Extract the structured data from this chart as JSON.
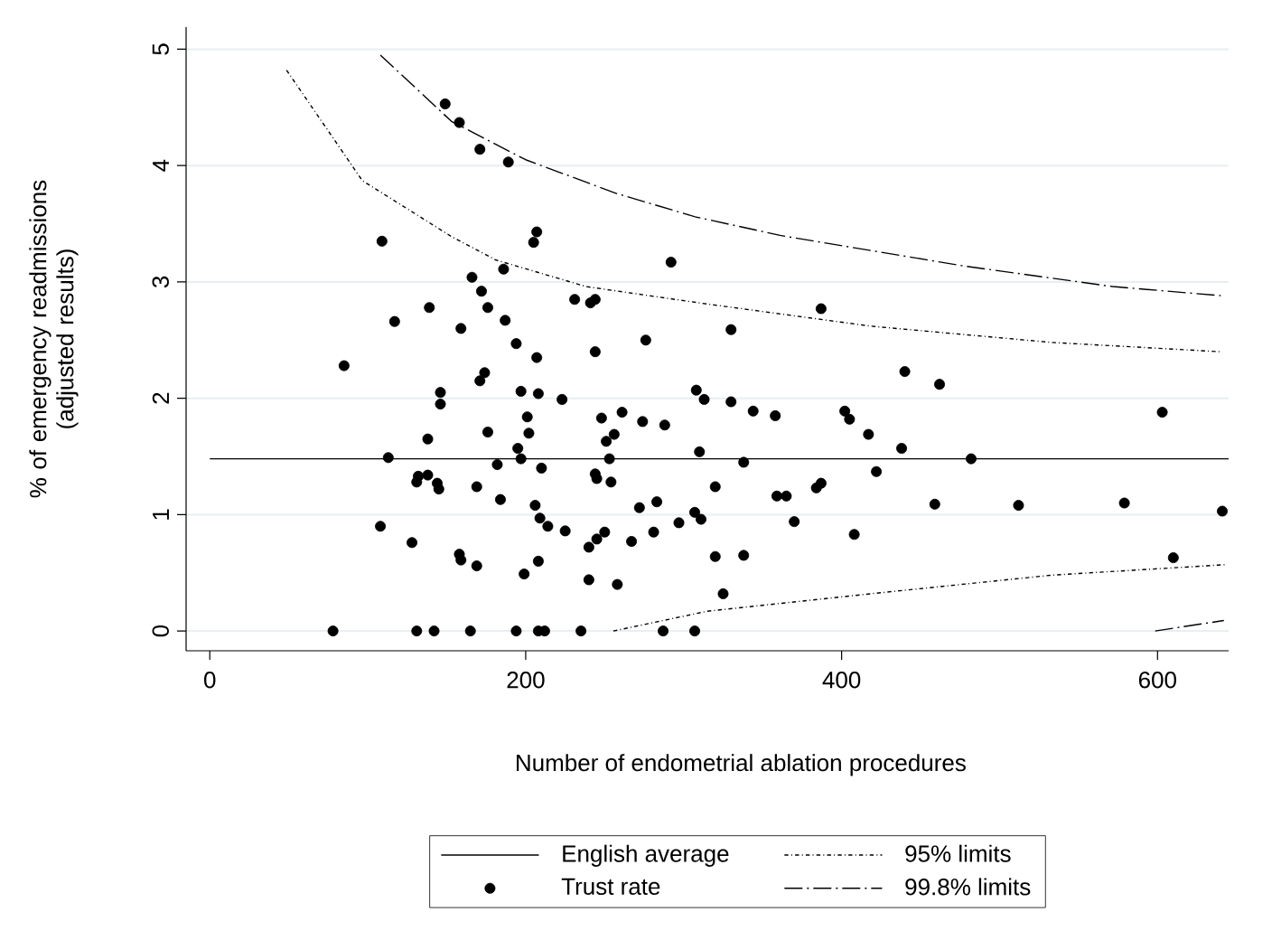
{
  "chart_data": {
    "type": "scatter",
    "xlabel": "Number of endometrial ablation procedures",
    "ylabel": "% of emergency readmissions (adjusted results)",
    "xlim": [
      -15,
      645
    ],
    "ylim": [
      -0.17,
      5.19
    ],
    "xticks": [
      0,
      200,
      400,
      600
    ],
    "yticks": [
      0,
      1,
      2,
      3,
      4,
      5
    ],
    "grid": "y",
    "legend": "bottom",
    "series": [
      {
        "name": "English average",
        "type": "line",
        "color": "#000000",
        "line_style": "solid",
        "x": [
          0,
          645
        ],
        "values": [
          1.48,
          1.48
        ]
      },
      {
        "name": "95% limits",
        "type": "line",
        "color": "#000000",
        "line_style": "dotted",
        "x": [
          48.6,
          96.6,
          153,
          180.8,
          238.3,
          315,
          418.4,
          533,
          640
        ],
        "values": [
          4.82,
          3.87,
          3.39,
          3.19,
          2.96,
          2.81,
          2.62,
          2.48,
          2.4
        ]
      },
      {
        "type": "line",
        "color": "#000000",
        "line_style": "dotted",
        "x": [
          255.5,
          315,
          418.4,
          533,
          643
        ],
        "values": [
          0,
          0.17,
          0.32,
          0.48,
          0.57
        ]
      },
      {
        "name": "Trust rate",
        "color": "#000000",
        "marker": "circle",
        "x": [
          149,
          109,
          139,
          117,
          85,
          146,
          146,
          138,
          113,
          132,
          138,
          131,
          144,
          145,
          108,
          128,
          78,
          131,
          142,
          158,
          171,
          189,
          207,
          205,
          292,
          186,
          166,
          172,
          231,
          241,
          244,
          176,
          187,
          159,
          276,
          194,
          244,
          207,
          174,
          171,
          197,
          208,
          223,
          308,
          313,
          201,
          248,
          261,
          274,
          288,
          176,
          202,
          256,
          251,
          195,
          197,
          253,
          310,
          182,
          210,
          244,
          245,
          254,
          169,
          184,
          206,
          272,
          283,
          209,
          214,
          225,
          250,
          245,
          240,
          267,
          281,
          297,
          307,
          311,
          158,
          159,
          169,
          208,
          199,
          240,
          258,
          165,
          194,
          208,
          212,
          235,
          287,
          307,
          387,
          330,
          440,
          462,
          330,
          344,
          358,
          402,
          405,
          417,
          438,
          603,
          338,
          482,
          320,
          422,
          359,
          365,
          384,
          387,
          370,
          459,
          512,
          579,
          641,
          408,
          320,
          338,
          325,
          610
        ],
        "values": [
          4.53,
          3.35,
          2.78,
          2.66,
          2.28,
          2.05,
          1.95,
          1.65,
          1.49,
          1.33,
          1.34,
          1.28,
          1.27,
          1.22,
          0.9,
          0.76,
          0,
          0,
          0,
          4.37,
          4.14,
          4.03,
          3.43,
          3.34,
          3.17,
          3.11,
          3.04,
          2.92,
          2.85,
          2.82,
          2.85,
          2.78,
          2.67,
          2.6,
          2.5,
          2.47,
          2.4,
          2.35,
          2.22,
          2.15,
          2.06,
          2.04,
          1.99,
          2.07,
          1.99,
          1.84,
          1.83,
          1.88,
          1.8,
          1.77,
          1.71,
          1.7,
          1.69,
          1.63,
          1.57,
          1.48,
          1.48,
          1.54,
          1.43,
          1.4,
          1.35,
          1.31,
          1.28,
          1.24,
          1.13,
          1.08,
          1.06,
          1.11,
          0.97,
          0.9,
          0.86,
          0.85,
          0.79,
          0.72,
          0.77,
          0.85,
          0.93,
          1.02,
          0.96,
          0.66,
          0.61,
          0.56,
          0.6,
          0.49,
          0.44,
          0.4,
          0,
          0,
          0,
          0,
          0,
          0,
          0,
          2.77,
          2.59,
          2.23,
          2.12,
          1.97,
          1.89,
          1.85,
          1.89,
          1.82,
          1.69,
          1.57,
          1.88,
          1.45,
          1.48,
          1.24,
          1.37,
          1.16,
          1.16,
          1.23,
          1.27,
          0.94,
          1.09,
          1.08,
          1.1,
          1.03,
          0.83,
          0.64,
          0.65,
          0.32,
          0.63
        ]
      },
      {
        "name": "99.8% limits",
        "type": "line",
        "color": "#000000",
        "line_style": "dashed",
        "x": [
          108,
          153,
          200,
          257.5,
          307.2,
          361,
          476,
          571.6,
          642
        ],
        "values": [
          4.95,
          4.38,
          4.05,
          3.76,
          3.56,
          3.4,
          3.14,
          2.96,
          2.88
        ]
      },
      {
        "type": "line",
        "color": "#000000",
        "line_style": "dashed",
        "x": [
          598.5,
          642
        ],
        "values": [
          0,
          0.09
        ]
      }
    ]
  }
}
